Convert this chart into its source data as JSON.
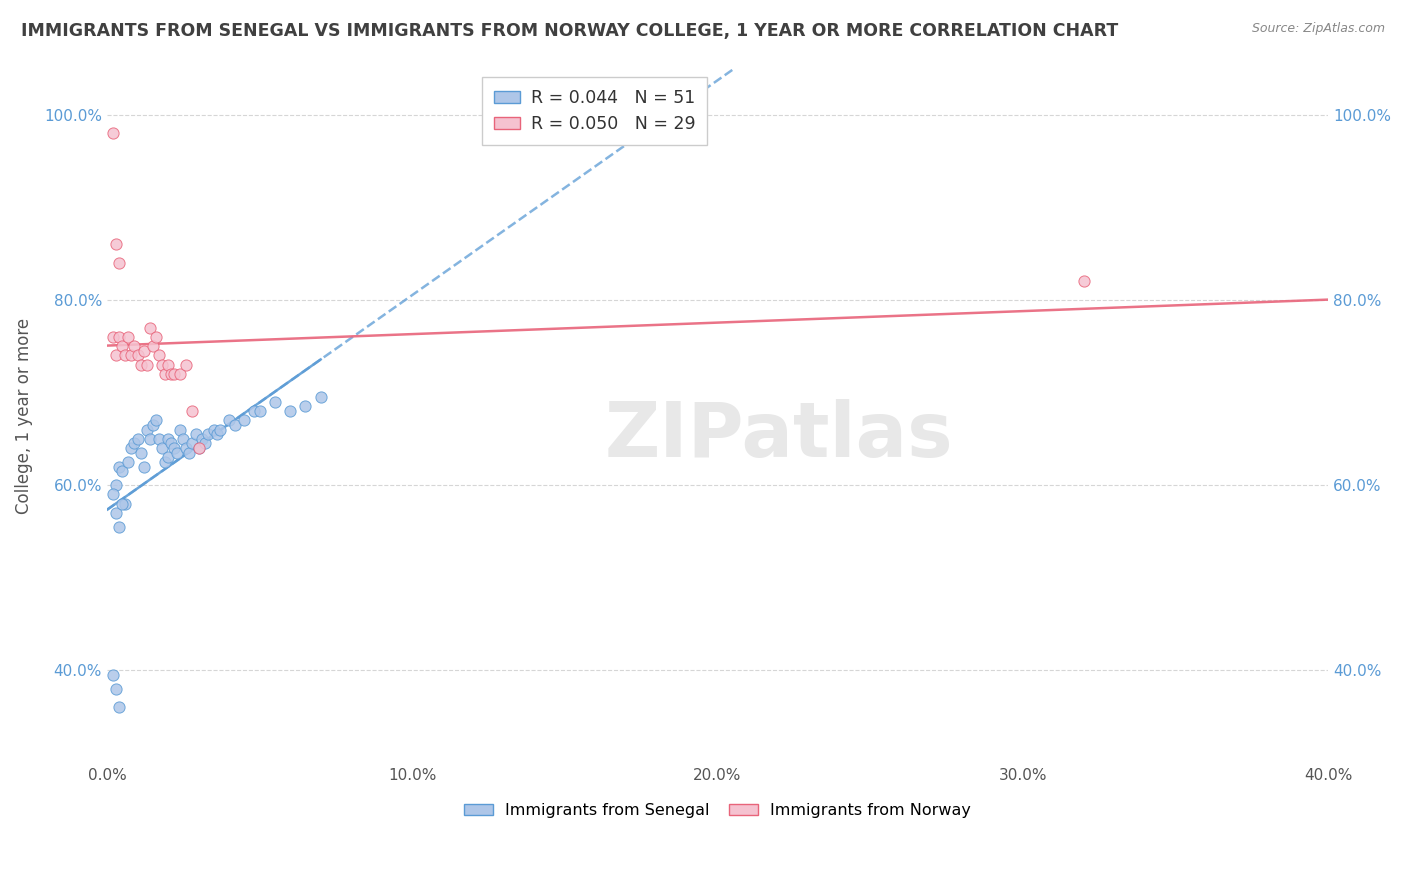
{
  "title": "IMMIGRANTS FROM SENEGAL VS IMMIGRANTS FROM NORWAY COLLEGE, 1 YEAR OR MORE CORRELATION CHART",
  "source": "Source: ZipAtlas.com",
  "ylabel": "College, 1 year or more",
  "xlim": [
    0.0,
    0.4
  ],
  "ylim": [
    0.3,
    1.05
  ],
  "xticks": [
    0.0,
    0.1,
    0.2,
    0.3,
    0.4
  ],
  "yticks": [
    0.4,
    0.6,
    0.8,
    1.0
  ],
  "xtick_labels": [
    "0.0%",
    "10.0%",
    "20.0%",
    "30.0%",
    "40.0%"
  ],
  "ytick_labels": [
    "40.0%",
    "60.0%",
    "80.0%",
    "100.0%"
  ],
  "legend_labels": [
    "Immigrants from Senegal",
    "Immigrants from Norway"
  ],
  "R_senegal": 0.044,
  "N_senegal": 51,
  "R_norway": 0.05,
  "N_norway": 29,
  "color_senegal": "#aec6e8",
  "color_norway": "#f5c2d0",
  "line_color_senegal": "#5b9bd5",
  "line_color_norway": "#e8647a",
  "watermark": "ZIPatlas",
  "background_color": "#ffffff",
  "title_color": "#404040",
  "source_color": "#888888",
  "scatter_senegal_x": [
    0.003,
    0.004,
    0.005,
    0.006,
    0.007,
    0.008,
    0.009,
    0.01,
    0.011,
    0.012,
    0.013,
    0.014,
    0.015,
    0.016,
    0.017,
    0.018,
    0.019,
    0.02,
    0.02,
    0.021,
    0.022,
    0.023,
    0.024,
    0.025,
    0.026,
    0.027,
    0.028,
    0.029,
    0.03,
    0.031,
    0.032,
    0.033,
    0.035,
    0.036,
    0.037,
    0.04,
    0.042,
    0.045,
    0.048,
    0.05,
    0.055,
    0.06,
    0.065,
    0.07,
    0.002,
    0.003,
    0.004,
    0.005,
    0.002,
    0.003,
    0.004
  ],
  "scatter_senegal_y": [
    0.6,
    0.62,
    0.615,
    0.58,
    0.625,
    0.64,
    0.645,
    0.65,
    0.635,
    0.62,
    0.66,
    0.65,
    0.665,
    0.67,
    0.65,
    0.64,
    0.625,
    0.63,
    0.65,
    0.645,
    0.64,
    0.635,
    0.66,
    0.65,
    0.64,
    0.635,
    0.645,
    0.655,
    0.64,
    0.65,
    0.645,
    0.655,
    0.66,
    0.655,
    0.66,
    0.67,
    0.665,
    0.67,
    0.68,
    0.68,
    0.69,
    0.68,
    0.685,
    0.695,
    0.59,
    0.57,
    0.555,
    0.58,
    0.395,
    0.38,
    0.36
  ],
  "scatter_norway_x": [
    0.002,
    0.003,
    0.004,
    0.005,
    0.006,
    0.007,
    0.008,
    0.009,
    0.01,
    0.011,
    0.012,
    0.013,
    0.014,
    0.015,
    0.016,
    0.017,
    0.018,
    0.019,
    0.02,
    0.021,
    0.022,
    0.024,
    0.026,
    0.028,
    0.03,
    0.003,
    0.004,
    0.32,
    0.002
  ],
  "scatter_norway_y": [
    0.76,
    0.74,
    0.76,
    0.75,
    0.74,
    0.76,
    0.74,
    0.75,
    0.74,
    0.73,
    0.745,
    0.73,
    0.77,
    0.75,
    0.76,
    0.74,
    0.73,
    0.72,
    0.73,
    0.72,
    0.72,
    0.72,
    0.73,
    0.68,
    0.64,
    0.86,
    0.84,
    0.82,
    0.98
  ]
}
